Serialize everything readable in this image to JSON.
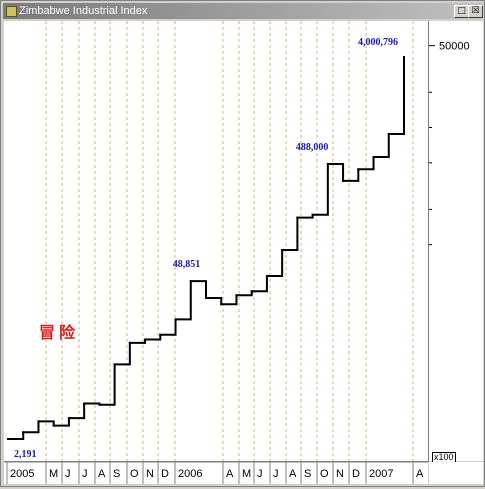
{
  "window": {
    "title": "Zimbabwe Industrial Index",
    "minimize_glyph": "□",
    "close_glyph": "☒"
  },
  "chart_data": {
    "type": "line",
    "title": "Zimbabwe Industrial Index",
    "y_scale": "log",
    "y_tick_labels": [
      "50000"
    ],
    "y_multiplier_label": "x100",
    "x_tick_labels": [
      "2005",
      "M",
      "J",
      "J",
      "A",
      "S",
      "O",
      "N",
      "D",
      "2006",
      "A",
      "M",
      "J",
      "J",
      "A",
      "S",
      "O",
      "N",
      "D",
      "2007",
      "A"
    ],
    "annotations": [
      "2,191",
      "48,851",
      "488,000",
      "4,000,796"
    ],
    "watermark_text": "冒险",
    "series": [
      {
        "x": [
          "2005-01",
          "2005-02",
          "2005-03",
          "2005-04",
          "2005-05",
          "2005-06",
          "2005-07",
          "2005-08",
          "2005-09",
          "2005-10",
          "2005-11",
          "2005-12",
          "2006-01",
          "2006-02",
          "2006-03",
          "2006-04",
          "2006-05",
          "2006-06",
          "2006-07",
          "2006-08",
          "2006-09",
          "2006-10",
          "2006-11",
          "2006-12",
          "2007-01",
          "2007-02",
          "2007-03"
        ],
        "values": [
          2191,
          2500,
          3100,
          2850,
          3300,
          4400,
          4300,
          9500,
          14500,
          15500,
          17000,
          23000,
          48851,
          35000,
          31000,
          37000,
          40000,
          54000,
          90000,
          170000,
          180000,
          488000,
          350000,
          440000,
          560000,
          880000,
          4000796
        ]
      }
    ],
    "grid_vertical": true,
    "color": "#000000"
  }
}
